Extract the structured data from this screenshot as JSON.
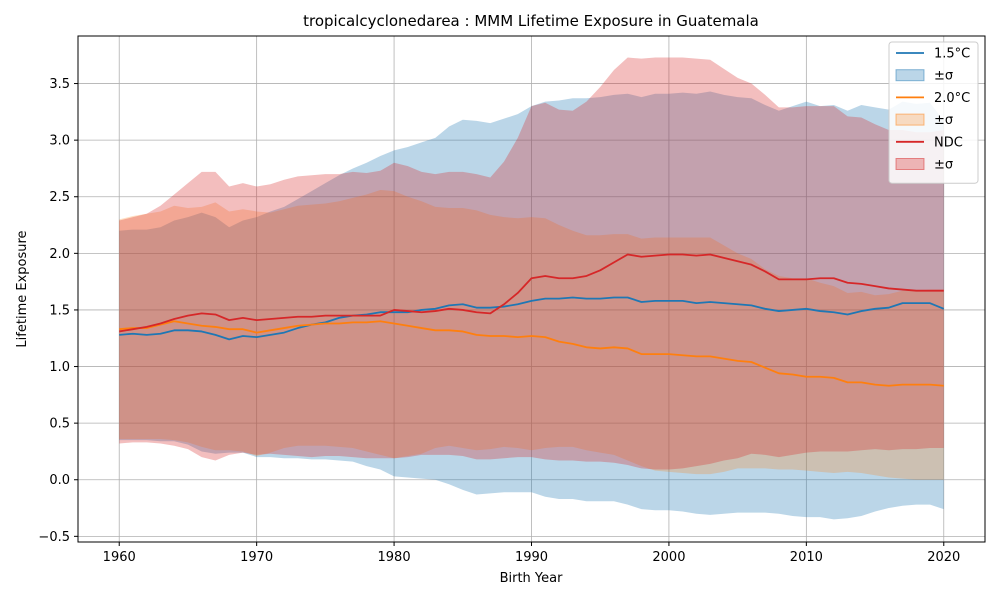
{
  "chart_data": {
    "type": "line",
    "title": "tropicalcyclonedarea : MMM Lifetime Exposure in Guatemala",
    "xlabel": "Birth Year",
    "ylabel": "Lifetime Exposure",
    "xlim": [
      1957,
      2023
    ],
    "ylim": [
      -0.55,
      3.92
    ],
    "xticks": [
      1960,
      1970,
      1980,
      1990,
      2000,
      2010,
      2020
    ],
    "yticks": [
      -0.5,
      0.0,
      0.5,
      1.0,
      1.5,
      2.0,
      2.5,
      3.0,
      3.5
    ],
    "grid": true,
    "legend_position": "top-right",
    "x": [
      1960,
      1961,
      1962,
      1963,
      1964,
      1965,
      1966,
      1967,
      1968,
      1969,
      1970,
      1971,
      1972,
      1973,
      1974,
      1975,
      1976,
      1977,
      1978,
      1979,
      1980,
      1981,
      1982,
      1983,
      1984,
      1985,
      1986,
      1987,
      1988,
      1989,
      1990,
      1991,
      1992,
      1993,
      1994,
      1995,
      1996,
      1997,
      1998,
      1999,
      2000,
      2001,
      2002,
      2003,
      2004,
      2005,
      2006,
      2007,
      2008,
      2009,
      2010,
      2011,
      2012,
      2013,
      2014,
      2015,
      2016,
      2017,
      2018,
      2019,
      2020
    ],
    "series": [
      {
        "name": "1.5°C",
        "band_label": "±σ",
        "color": "#1f77b4",
        "band_color": "#1f77b4",
        "band_opacity": 0.3,
        "values": [
          1.28,
          1.29,
          1.28,
          1.29,
          1.32,
          1.32,
          1.31,
          1.28,
          1.24,
          1.27,
          1.26,
          1.28,
          1.3,
          1.34,
          1.37,
          1.39,
          1.43,
          1.45,
          1.46,
          1.48,
          1.48,
          1.48,
          1.5,
          1.51,
          1.54,
          1.55,
          1.52,
          1.52,
          1.53,
          1.55,
          1.58,
          1.6,
          1.6,
          1.61,
          1.6,
          1.6,
          1.61,
          1.61,
          1.57,
          1.58,
          1.58,
          1.58,
          1.56,
          1.57,
          1.56,
          1.55,
          1.54,
          1.51,
          1.49,
          1.5,
          1.51,
          1.49,
          1.48,
          1.46,
          1.49,
          1.51,
          1.52,
          1.56,
          1.56,
          1.56,
          1.51
        ],
        "upper": [
          2.2,
          2.21,
          2.21,
          2.23,
          2.29,
          2.32,
          2.36,
          2.32,
          2.23,
          2.29,
          2.32,
          2.37,
          2.41,
          2.48,
          2.55,
          2.62,
          2.69,
          2.75,
          2.8,
          2.86,
          2.91,
          2.94,
          2.98,
          3.02,
          3.12,
          3.18,
          3.17,
          3.15,
          3.19,
          3.23,
          3.3,
          3.34,
          3.35,
          3.37,
          3.37,
          3.38,
          3.4,
          3.41,
          3.38,
          3.41,
          3.41,
          3.42,
          3.41,
          3.43,
          3.4,
          3.38,
          3.37,
          3.31,
          3.26,
          3.3,
          3.34,
          3.3,
          3.31,
          3.26,
          3.31,
          3.29,
          3.27,
          3.34,
          3.32,
          3.33,
          3.17
        ],
        "lower": [
          0.35,
          0.35,
          0.35,
          0.34,
          0.34,
          0.31,
          0.25,
          0.23,
          0.24,
          0.24,
          0.2,
          0.2,
          0.19,
          0.19,
          0.18,
          0.18,
          0.17,
          0.16,
          0.12,
          0.09,
          0.03,
          0.02,
          0.01,
          0.0,
          -0.04,
          -0.09,
          -0.13,
          -0.12,
          -0.11,
          -0.11,
          -0.11,
          -0.15,
          -0.17,
          -0.17,
          -0.19,
          -0.19,
          -0.19,
          -0.22,
          -0.26,
          -0.27,
          -0.27,
          -0.28,
          -0.3,
          -0.31,
          -0.3,
          -0.29,
          -0.29,
          -0.29,
          -0.3,
          -0.32,
          -0.33,
          -0.33,
          -0.35,
          -0.34,
          -0.32,
          -0.28,
          -0.25,
          -0.23,
          -0.22,
          -0.22,
          -0.26
        ]
      },
      {
        "name": "2.0°C",
        "band_label": "±σ",
        "color": "#ff7f0e",
        "band_color": "#ff7f0e",
        "band_opacity": 0.25,
        "values": [
          1.33,
          1.34,
          1.34,
          1.37,
          1.4,
          1.38,
          1.36,
          1.35,
          1.33,
          1.33,
          1.3,
          1.32,
          1.34,
          1.36,
          1.37,
          1.38,
          1.38,
          1.39,
          1.39,
          1.4,
          1.38,
          1.36,
          1.34,
          1.32,
          1.32,
          1.31,
          1.28,
          1.27,
          1.27,
          1.26,
          1.27,
          1.26,
          1.22,
          1.2,
          1.17,
          1.16,
          1.17,
          1.16,
          1.11,
          1.11,
          1.11,
          1.1,
          1.09,
          1.09,
          1.07,
          1.05,
          1.04,
          0.99,
          0.94,
          0.93,
          0.91,
          0.91,
          0.9,
          0.86,
          0.86,
          0.84,
          0.83,
          0.84,
          0.84,
          0.84,
          0.83
        ],
        "upper": [
          2.3,
          2.33,
          2.35,
          2.37,
          2.42,
          2.4,
          2.41,
          2.45,
          2.37,
          2.39,
          2.37,
          2.36,
          2.39,
          2.42,
          2.43,
          2.44,
          2.46,
          2.49,
          2.52,
          2.56,
          2.55,
          2.5,
          2.46,
          2.41,
          2.4,
          2.4,
          2.38,
          2.34,
          2.32,
          2.31,
          2.32,
          2.31,
          2.25,
          2.2,
          2.16,
          2.16,
          2.17,
          2.17,
          2.13,
          2.14,
          2.14,
          2.14,
          2.14,
          2.14,
          2.07,
          2.0,
          1.95,
          1.86,
          1.8,
          1.78,
          1.78,
          1.74,
          1.71,
          1.65,
          1.66,
          1.63,
          1.64,
          1.67,
          1.67,
          1.68,
          1.68
        ],
        "lower": [
          0.36,
          0.36,
          0.36,
          0.36,
          0.35,
          0.33,
          0.29,
          0.26,
          0.26,
          0.25,
          0.21,
          0.24,
          0.28,
          0.3,
          0.3,
          0.3,
          0.29,
          0.28,
          0.25,
          0.22,
          0.19,
          0.21,
          0.23,
          0.28,
          0.3,
          0.28,
          0.26,
          0.27,
          0.29,
          0.28,
          0.26,
          0.28,
          0.29,
          0.29,
          0.26,
          0.24,
          0.22,
          0.17,
          0.12,
          0.08,
          0.07,
          0.06,
          0.05,
          0.05,
          0.07,
          0.1,
          0.1,
          0.1,
          0.09,
          0.09,
          0.08,
          0.07,
          0.06,
          0.07,
          0.06,
          0.04,
          0.02,
          0.01,
          0.0,
          0.0,
          0.0
        ]
      },
      {
        "name": "NDC",
        "band_label": "±σ",
        "color": "#d62728",
        "band_color": "#d62728",
        "band_opacity": 0.3,
        "values": [
          1.31,
          1.33,
          1.35,
          1.38,
          1.42,
          1.45,
          1.47,
          1.46,
          1.41,
          1.43,
          1.41,
          1.42,
          1.43,
          1.44,
          1.44,
          1.45,
          1.45,
          1.45,
          1.45,
          1.45,
          1.5,
          1.49,
          1.48,
          1.49,
          1.51,
          1.5,
          1.48,
          1.47,
          1.55,
          1.65,
          1.78,
          1.8,
          1.78,
          1.78,
          1.8,
          1.85,
          1.92,
          1.99,
          1.97,
          1.98,
          1.99,
          1.99,
          1.98,
          1.99,
          1.96,
          1.93,
          1.9,
          1.84,
          1.77,
          1.77,
          1.77,
          1.78,
          1.78,
          1.74,
          1.73,
          1.71,
          1.69,
          1.68,
          1.67,
          1.67,
          1.67
        ],
        "upper": [
          2.29,
          2.32,
          2.35,
          2.42,
          2.52,
          2.62,
          2.72,
          2.72,
          2.59,
          2.62,
          2.59,
          2.61,
          2.65,
          2.68,
          2.69,
          2.7,
          2.7,
          2.72,
          2.71,
          2.73,
          2.8,
          2.77,
          2.72,
          2.7,
          2.72,
          2.72,
          2.7,
          2.67,
          2.81,
          3.02,
          3.3,
          3.33,
          3.27,
          3.26,
          3.34,
          3.47,
          3.62,
          3.73,
          3.72,
          3.73,
          3.73,
          3.73,
          3.72,
          3.71,
          3.63,
          3.55,
          3.5,
          3.4,
          3.29,
          3.29,
          3.3,
          3.3,
          3.3,
          3.21,
          3.2,
          3.14,
          3.09,
          3.09,
          3.07,
          3.07,
          3.09
        ],
        "lower": [
          0.32,
          0.33,
          0.33,
          0.32,
          0.3,
          0.27,
          0.2,
          0.17,
          0.22,
          0.24,
          0.22,
          0.23,
          0.22,
          0.21,
          0.2,
          0.21,
          0.21,
          0.2,
          0.19,
          0.19,
          0.19,
          0.2,
          0.22,
          0.22,
          0.22,
          0.21,
          0.18,
          0.18,
          0.19,
          0.2,
          0.2,
          0.18,
          0.17,
          0.17,
          0.16,
          0.16,
          0.15,
          0.13,
          0.1,
          0.09,
          0.09,
          0.1,
          0.12,
          0.14,
          0.17,
          0.19,
          0.23,
          0.22,
          0.2,
          0.22,
          0.24,
          0.25,
          0.25,
          0.25,
          0.26,
          0.27,
          0.26,
          0.27,
          0.27,
          0.28,
          0.28
        ]
      }
    ]
  }
}
